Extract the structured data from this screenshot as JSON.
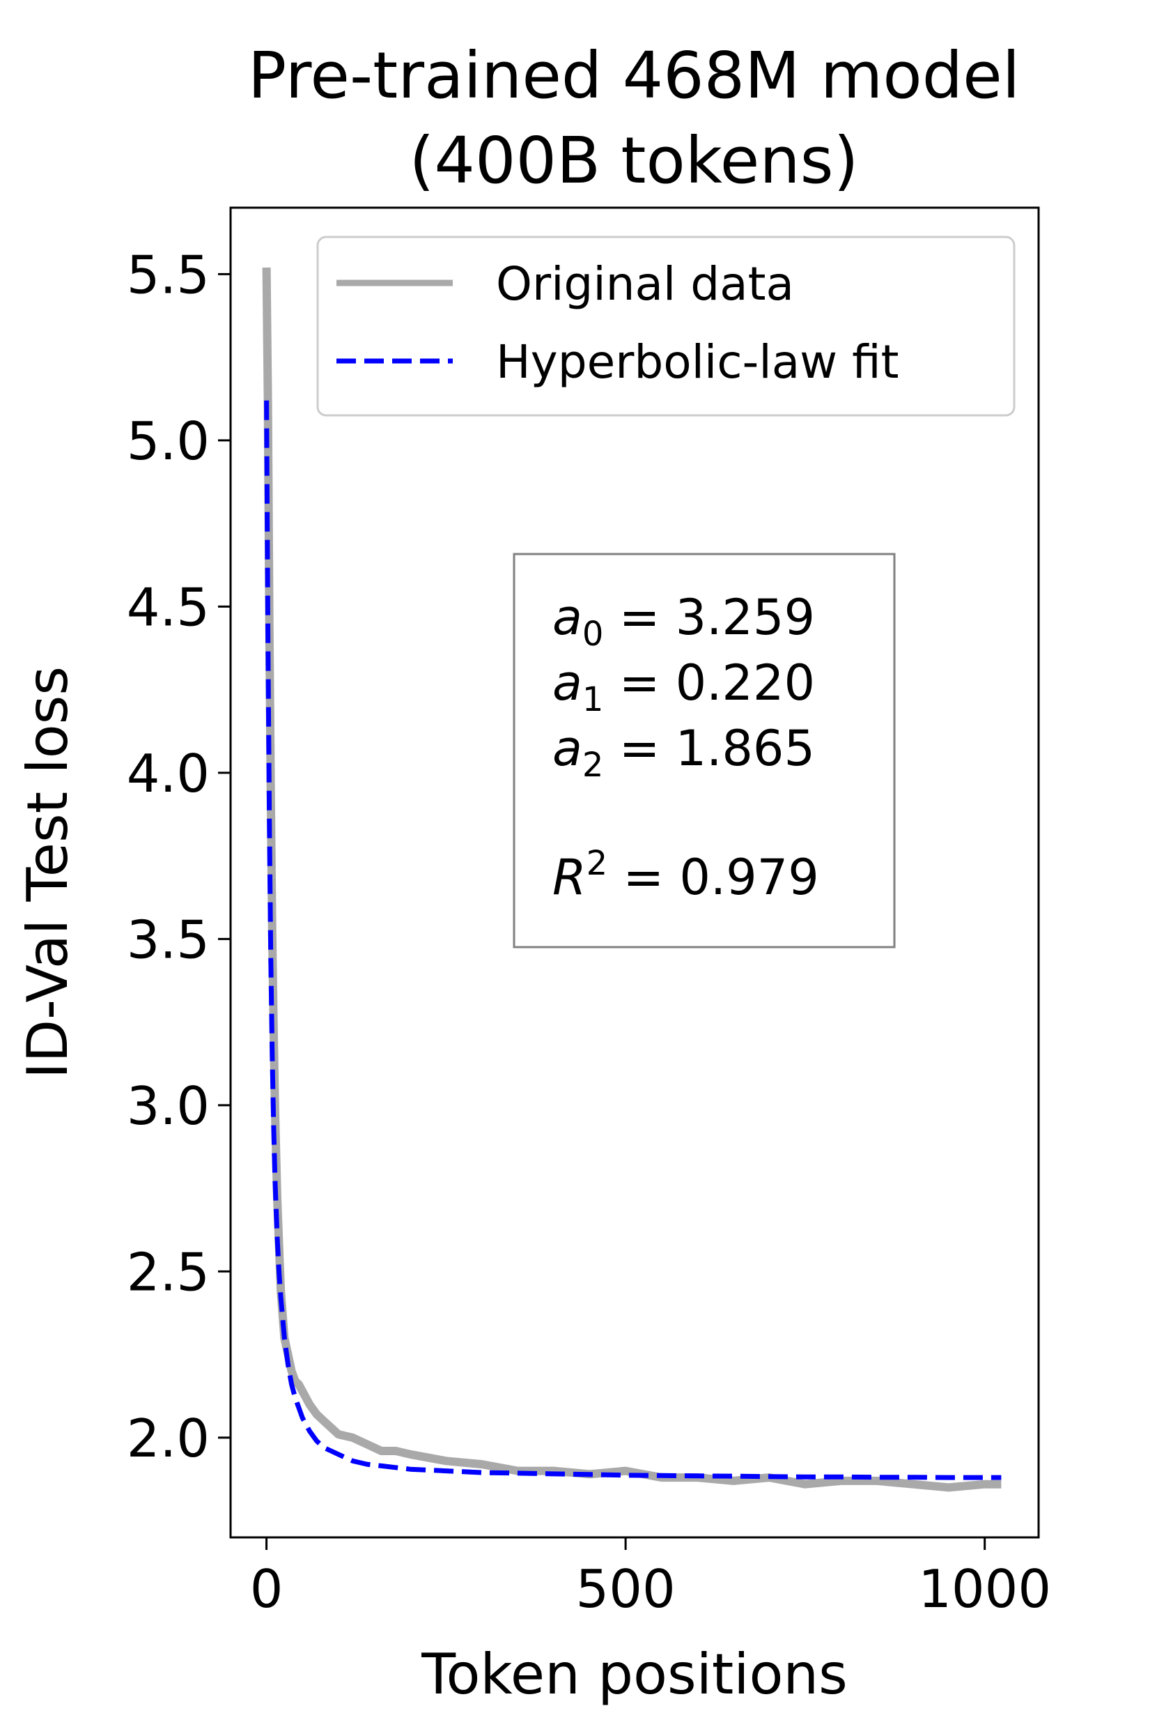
{
  "chart_data": {
    "type": "line",
    "title_lines": [
      "Pre-trained 468M model",
      "(400B tokens)"
    ],
    "xlabel": "Token positions",
    "ylabel": "ID-Val Test loss",
    "xlim": [
      -50,
      1075
    ],
    "ylim": [
      1.7,
      5.7
    ],
    "xticks": [
      0,
      500,
      1000
    ],
    "xtick_labels": [
      "0",
      "500",
      "1000"
    ],
    "yticks": [
      2.0,
      2.5,
      3.0,
      3.5,
      4.0,
      4.5,
      5.0,
      5.5
    ],
    "ytick_labels": [
      "2.0",
      "2.5",
      "3.0",
      "3.5",
      "4.0",
      "4.5",
      "5.0",
      "5.5"
    ],
    "grid": false,
    "legend_position": "upper right",
    "series": [
      {
        "name": "Original data",
        "style": "solid",
        "color": "#a9a9a9",
        "x": [
          0,
          2,
          4,
          6,
          8,
          10,
          12,
          15,
          18,
          20,
          25,
          30,
          35,
          40,
          45,
          50,
          60,
          70,
          80,
          90,
          100,
          120,
          140,
          160,
          180,
          200,
          250,
          300,
          350,
          400,
          450,
          500,
          550,
          600,
          650,
          700,
          750,
          800,
          850,
          900,
          950,
          1000,
          1023
        ],
        "y": [
          5.52,
          5.12,
          4.45,
          3.95,
          3.52,
          3.22,
          2.98,
          2.72,
          2.55,
          2.44,
          2.3,
          2.25,
          2.2,
          2.17,
          2.16,
          2.14,
          2.1,
          2.07,
          2.05,
          2.03,
          2.01,
          2.0,
          1.98,
          1.96,
          1.96,
          1.95,
          1.93,
          1.92,
          1.9,
          1.9,
          1.89,
          1.9,
          1.88,
          1.88,
          1.87,
          1.88,
          1.86,
          1.87,
          1.87,
          1.86,
          1.85,
          1.86,
          1.86
        ]
      },
      {
        "name": "Hyperbolic-law fit",
        "style": "dashed",
        "color": "#0000ff",
        "x": [
          0,
          2,
          4,
          6,
          8,
          10,
          12,
          15,
          18,
          20,
          25,
          30,
          35,
          40,
          45,
          50,
          60,
          70,
          80,
          90,
          100,
          120,
          140,
          160,
          180,
          200,
          250,
          300,
          350,
          400,
          450,
          500,
          550,
          600,
          650,
          700,
          750,
          800,
          850,
          900,
          950,
          1000,
          1023
        ],
        "y": [
          5.12,
          4.42,
          3.86,
          3.45,
          3.15,
          2.93,
          2.77,
          2.6,
          2.48,
          2.42,
          2.3,
          2.22,
          2.16,
          2.12,
          2.09,
          2.06,
          2.02,
          1.99,
          1.97,
          1.96,
          1.95,
          1.93,
          1.92,
          1.915,
          1.91,
          1.905,
          1.9,
          1.895,
          1.893,
          1.891,
          1.889,
          1.887,
          1.886,
          1.885,
          1.884,
          1.883,
          1.882,
          1.882,
          1.881,
          1.881,
          1.88,
          1.88,
          1.88
        ]
      }
    ],
    "annotation": {
      "a0_sym": "a",
      "a0_sub": "0",
      "a0_val": " = 3.259",
      "a1_sym": "a",
      "a1_sub": "1",
      "a1_val": " = 0.220",
      "a2_sym": "a",
      "a2_sub": "2",
      "a2_val": " = 1.865",
      "r2_sym": "R",
      "r2_sup": "2",
      "r2_val": " = 0.979"
    }
  }
}
